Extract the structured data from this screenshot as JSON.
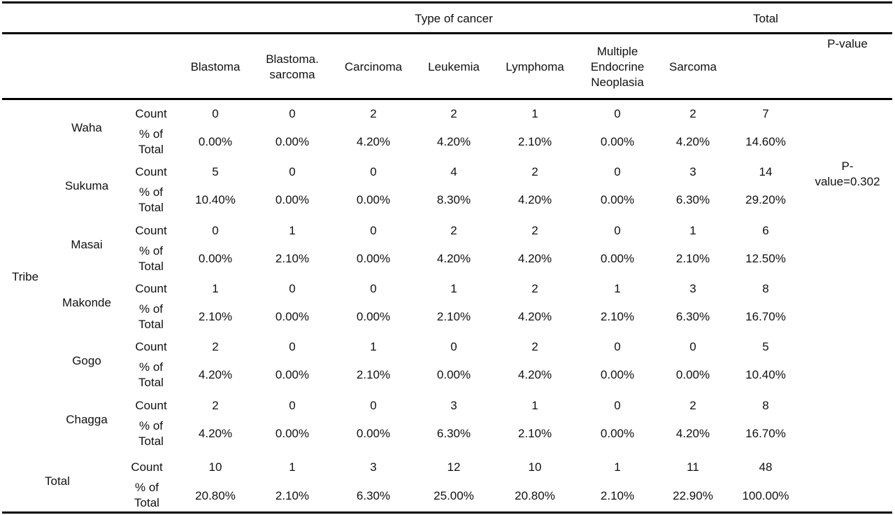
{
  "header": {
    "type_of_cancer": "Type of cancer",
    "total": "Total",
    "p_value": "P-value",
    "columns": [
      "Blastoma",
      "Blastoma.\nsarcoma",
      "Carcinoma",
      "Leukemia",
      "Lymphoma",
      "Multiple\nEndocrine\nNeoplasia",
      "Sarcoma"
    ]
  },
  "stub": {
    "tribe": "Tribe",
    "total": "Total",
    "count": "Count",
    "pct": "% of\nTotal"
  },
  "p_value_text": "P-\nvalue=0.302",
  "groups": [
    {
      "name": "Waha",
      "count": [
        "0",
        "0",
        "2",
        "2",
        "1",
        "0",
        "2",
        "7"
      ],
      "pct": [
        "0.00%",
        "0.00%",
        "4.20%",
        "4.20%",
        "2.10%",
        "0.00%",
        "4.20%",
        "14.60%"
      ]
    },
    {
      "name": "Sukuma",
      "count": [
        "5",
        "0",
        "0",
        "4",
        "2",
        "0",
        "3",
        "14"
      ],
      "pct": [
        "10.40%",
        "0.00%",
        "0.00%",
        "8.30%",
        "4.20%",
        "0.00%",
        "6.30%",
        "29.20%"
      ]
    },
    {
      "name": "Masai",
      "count": [
        "0",
        "1",
        "0",
        "2",
        "2",
        "0",
        "1",
        "6"
      ],
      "pct": [
        "0.00%",
        "2.10%",
        "0.00%",
        "4.20%",
        "4.20%",
        "0.00%",
        "2.10%",
        "12.50%"
      ]
    },
    {
      "name": "Makonde",
      "count": [
        "1",
        "0",
        "0",
        "1",
        "2",
        "1",
        "3",
        "8"
      ],
      "pct": [
        "2.10%",
        "0.00%",
        "0.00%",
        "2.10%",
        "4.20%",
        "2.10%",
        "6.30%",
        "16.70%"
      ]
    },
    {
      "name": "Gogo",
      "count": [
        "2",
        "0",
        "1",
        "0",
        "2",
        "0",
        "0",
        "5"
      ],
      "pct": [
        "4.20%",
        "0.00%",
        "2.10%",
        "0.00%",
        "4.20%",
        "0.00%",
        "0.00%",
        "10.40%"
      ]
    },
    {
      "name": "Chagga",
      "count": [
        "2",
        "0",
        "0",
        "3",
        "1",
        "0",
        "2",
        "8"
      ],
      "pct": [
        "4.20%",
        "0.00%",
        "0.00%",
        "6.30%",
        "2.10%",
        "0.00%",
        "4.20%",
        "16.70%"
      ]
    }
  ],
  "total_row": {
    "count": [
      "10",
      "1",
      "3",
      "12",
      "10",
      "1",
      "11",
      "48"
    ],
    "pct": [
      "20.80%",
      "2.10%",
      "6.30%",
      "25.00%",
      "20.80%",
      "2.10%",
      "22.90%",
      "100.00%"
    ]
  }
}
